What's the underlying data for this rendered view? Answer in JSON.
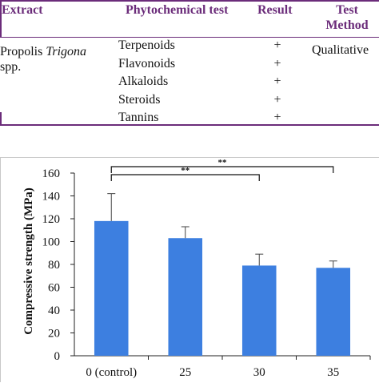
{
  "table": {
    "headers": {
      "extract": "Extract",
      "test": "Phytochemical test",
      "result": "Result",
      "method_line1": "Test",
      "method_line2": "Method"
    },
    "extract_name_prefix": "Propolis ",
    "extract_name_italic": "Trigona",
    "extract_name_suffix": "spp.",
    "method": "Qualitative",
    "rows": [
      {
        "test": "Terpenoids",
        "result": "+"
      },
      {
        "test": "Flavonoids",
        "result": "+"
      },
      {
        "test": "Alkaloids",
        "result": "+"
      },
      {
        "test": "Steroids",
        "result": "+"
      },
      {
        "test": "Tannins",
        "result": "+"
      }
    ]
  },
  "colors": {
    "header_accent": "#6b2c7a",
    "bar": "#3d7fe0",
    "axis": "#222222"
  },
  "chart_data": {
    "type": "bar",
    "title": "",
    "xlabel": "",
    "ylabel": "Compressive strength (MPa)",
    "categories": [
      "0 (control)",
      "25",
      "30",
      "35"
    ],
    "values": [
      118,
      103,
      79,
      77
    ],
    "error": [
      24,
      10,
      10,
      6
    ],
    "ylim": [
      0,
      160
    ],
    "yticks": [
      0,
      20,
      40,
      60,
      80,
      100,
      120,
      140,
      160
    ],
    "grid": false,
    "legend": "none",
    "significance": [
      {
        "from": "0 (control)",
        "to": "30",
        "label": "**"
      },
      {
        "from": "0 (control)",
        "to": "35",
        "label": "**"
      }
    ]
  }
}
